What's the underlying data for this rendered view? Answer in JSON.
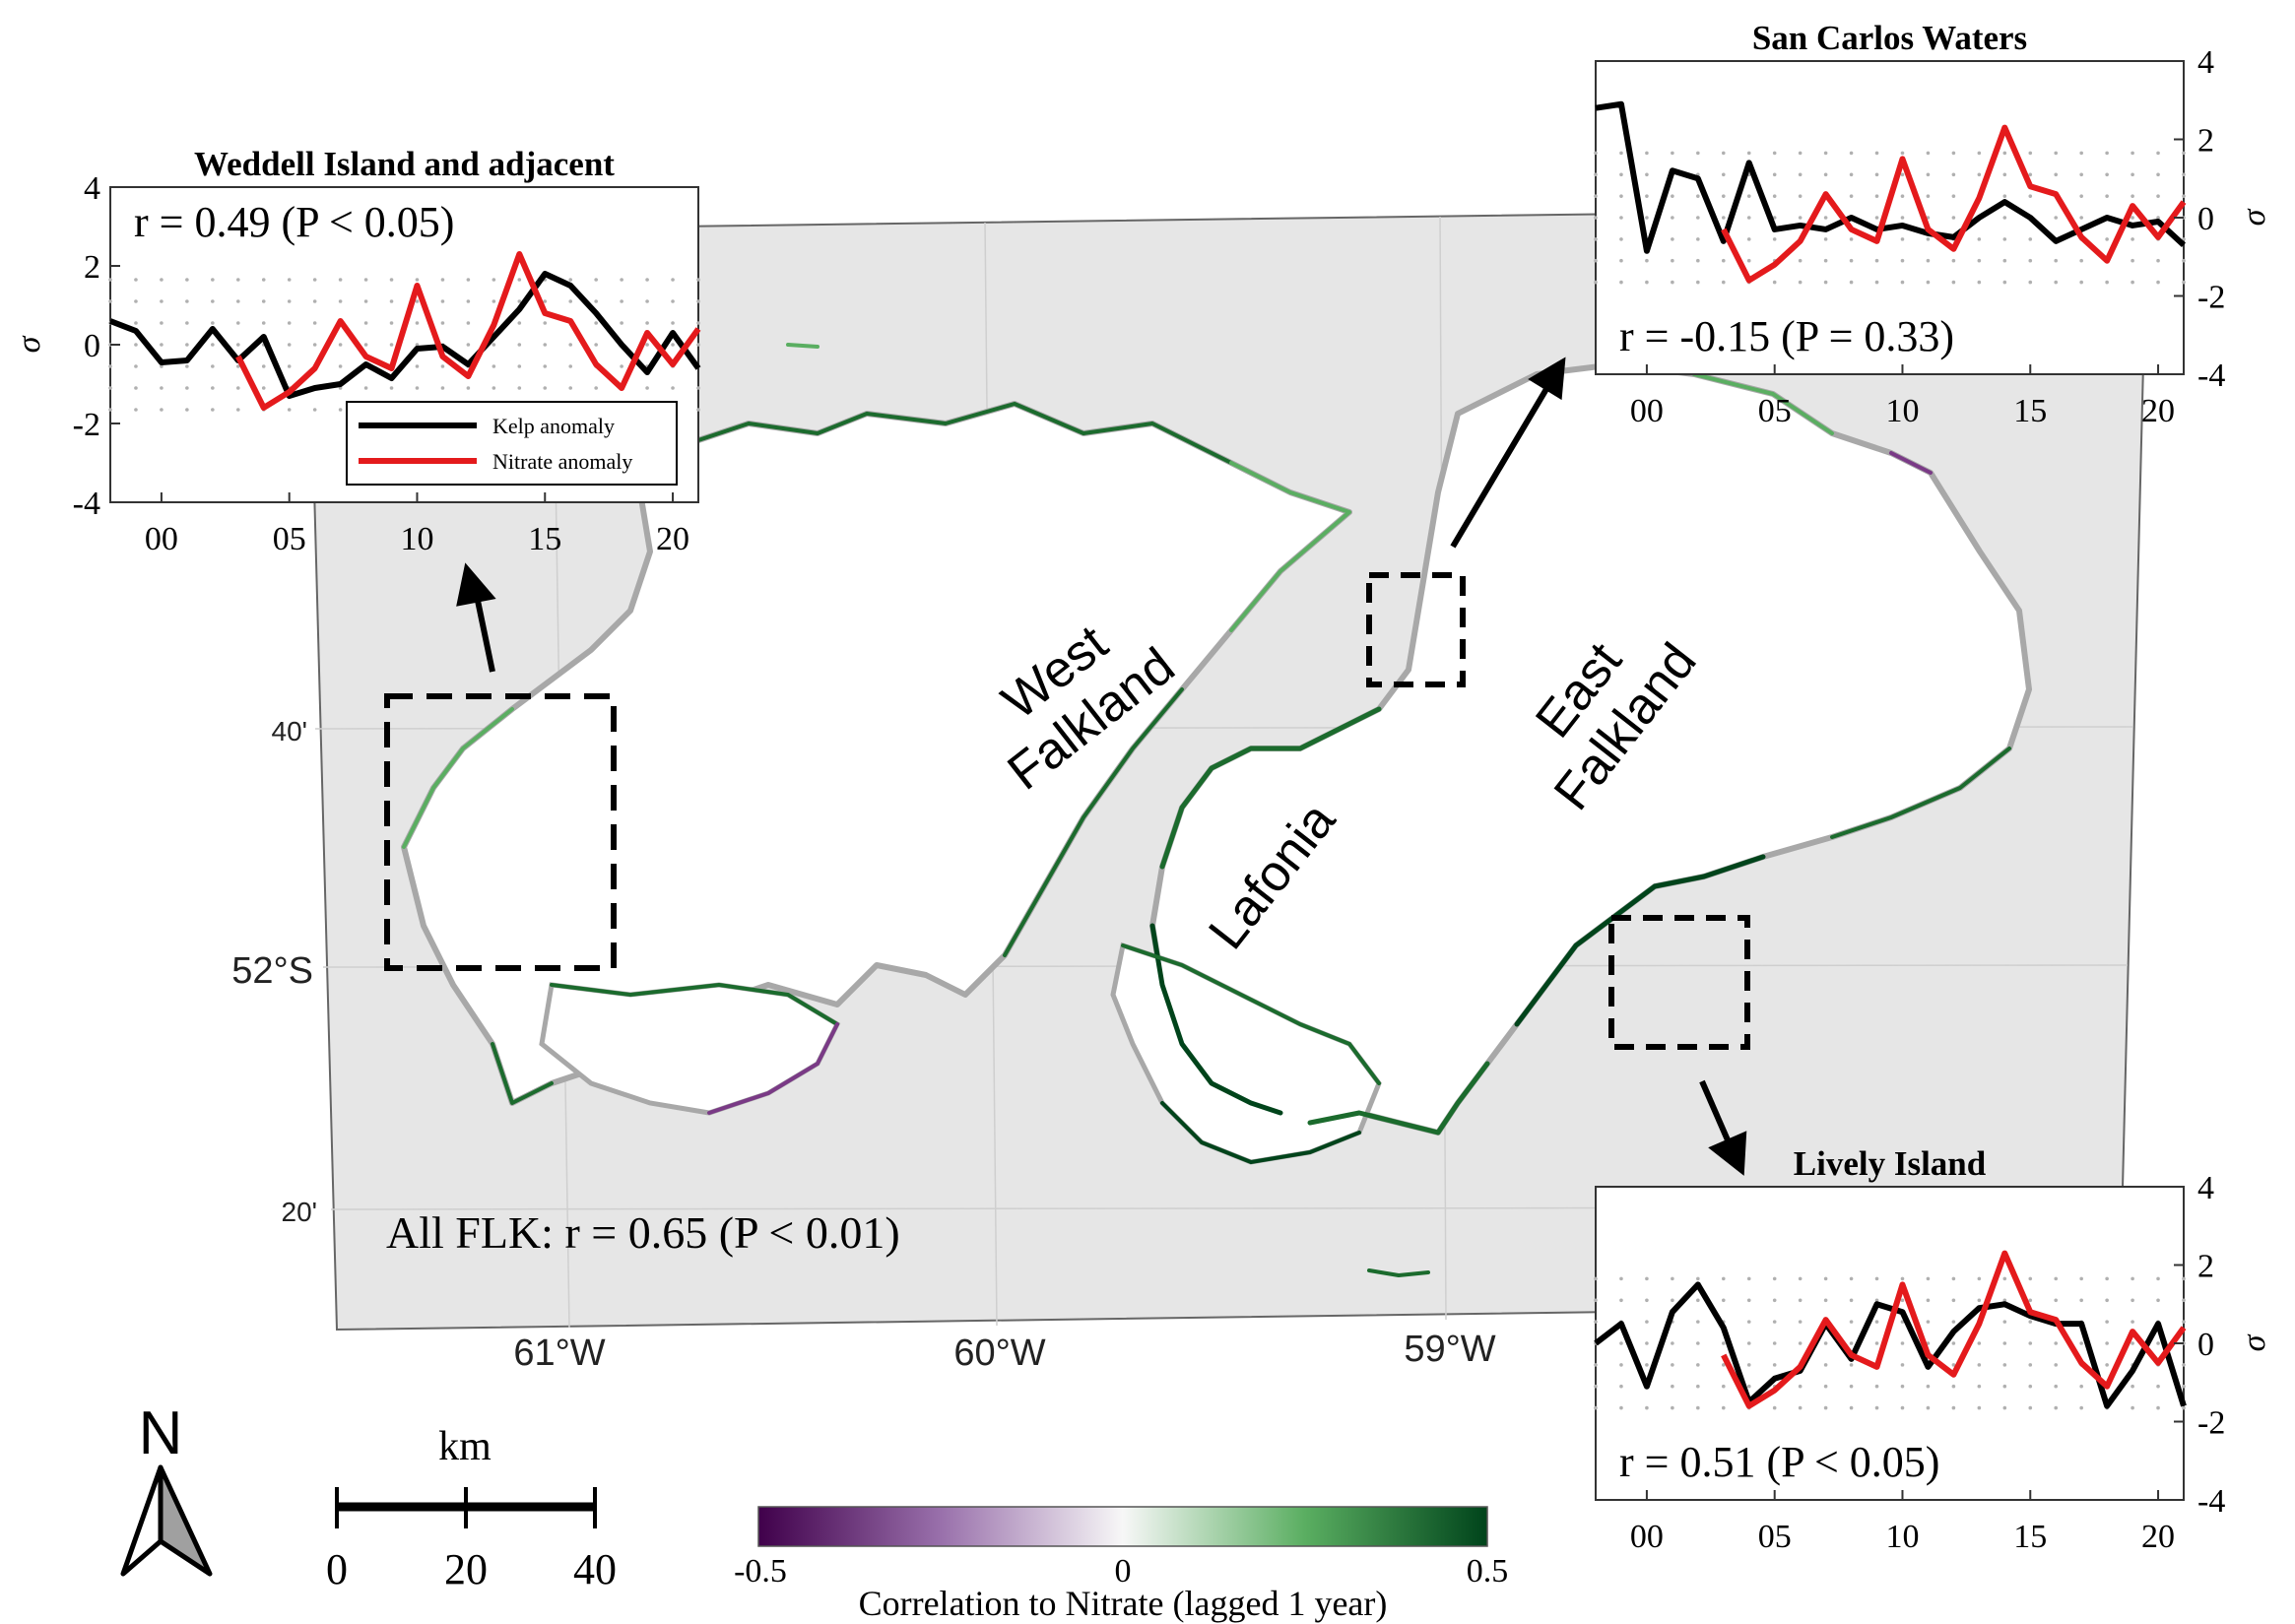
{
  "map": {
    "lat_labels": [
      "40'",
      "52°S",
      "20'"
    ],
    "lon_labels": [
      "61°W",
      "60°W",
      "59°W"
    ],
    "islands": [
      "West Falkland",
      "East Falkland",
      "Lafonia"
    ],
    "overall_stat": "All FLK: r = 0.65 (P < 0.01)",
    "colors": {
      "sea": "#e6e6e6",
      "land": "#ffffff",
      "shore_grey": "#a8a8a8",
      "positive": "#1b6b2d",
      "negative": "#7a3a86"
    }
  },
  "north_arrow": {
    "label": "N"
  },
  "scale_bar": {
    "unit": "km",
    "ticks": [
      "0",
      "20",
      "40"
    ]
  },
  "colorbar": {
    "label": "Correlation to Nitrate (lagged 1 year)",
    "ticks": [
      "-0.5",
      "0",
      "0.5"
    ],
    "range": [
      -0.5,
      0.5
    ],
    "colors": [
      "#40004b",
      "#9970ab",
      "#f7f7f7",
      "#5aae61",
      "#00441b"
    ]
  },
  "chart_data": [
    {
      "type": "line",
      "title": "Weddell Island and adjacent",
      "annotation": "r = 0.49 (P < 0.05)",
      "ylabel": "σ",
      "ylim": [
        -4,
        4
      ],
      "yticks": [
        "4",
        "2",
        "0",
        "-2",
        "-4"
      ],
      "xlim": [
        1998,
        2021
      ],
      "xticks": [
        "00",
        "05",
        "10",
        "15",
        "20"
      ],
      "legend_position": "bottom-right",
      "series": [
        {
          "name": "Kelp anomaly",
          "color": "#000000",
          "x": [
            1998,
            1999,
            2000,
            2001,
            2002,
            2003,
            2004,
            2005,
            2006,
            2007,
            2008,
            2009,
            2010,
            2011,
            2012,
            2013,
            2014,
            2015,
            2016,
            2017,
            2018,
            2019,
            2020,
            2021
          ],
          "y": [
            0.6,
            0.35,
            -0.45,
            -0.4,
            0.4,
            -0.4,
            0.2,
            -1.3,
            -1.1,
            -1.0,
            -0.5,
            -0.85,
            -0.1,
            -0.05,
            -0.5,
            0.2,
            0.9,
            1.8,
            1.5,
            0.8,
            0.0,
            -0.7,
            0.3,
            -0.6
          ]
        },
        {
          "name": "Nitrate anomaly",
          "color": "#e41a1c",
          "x": [
            2003,
            2004,
            2005,
            2006,
            2007,
            2008,
            2009,
            2010,
            2011,
            2012,
            2013,
            2014,
            2015,
            2016,
            2017,
            2018,
            2019,
            2020,
            2021
          ],
          "y": [
            -0.3,
            -1.6,
            -1.2,
            -0.6,
            0.6,
            -0.3,
            -0.6,
            1.5,
            -0.3,
            -0.8,
            0.5,
            2.3,
            0.8,
            0.6,
            -0.5,
            -1.1,
            0.3,
            -0.5,
            0.4
          ]
        }
      ]
    },
    {
      "type": "line",
      "title": "San Carlos Waters",
      "annotation": "r = -0.15 (P = 0.33)",
      "ylabel": "σ",
      "ylim": [
        -4,
        4
      ],
      "yticks": [
        "4",
        "2",
        "0",
        "-2",
        "-4"
      ],
      "xlim": [
        1998,
        2021
      ],
      "xticks": [
        "00",
        "05",
        "10",
        "15",
        "20"
      ],
      "series": [
        {
          "name": "Kelp anomaly",
          "color": "#000000",
          "x": [
            1998,
            1999,
            2000,
            2001,
            2002,
            2003,
            2004,
            2005,
            2006,
            2007,
            2008,
            2009,
            2010,
            2011,
            2012,
            2013,
            2014,
            2015,
            2016,
            2017,
            2018,
            2019,
            2020,
            2021
          ],
          "y": [
            2.8,
            2.9,
            -0.85,
            1.2,
            1.0,
            -0.6,
            1.4,
            -0.3,
            -0.2,
            -0.3,
            0.0,
            -0.3,
            -0.2,
            -0.4,
            -0.5,
            0.0,
            0.4,
            0.0,
            -0.6,
            -0.3,
            0.0,
            -0.2,
            -0.1,
            -0.7
          ]
        },
        {
          "name": "Nitrate anomaly",
          "color": "#e41a1c",
          "x": [
            2003,
            2004,
            2005,
            2006,
            2007,
            2008,
            2009,
            2010,
            2011,
            2012,
            2013,
            2014,
            2015,
            2016,
            2017,
            2018,
            2019,
            2020,
            2021
          ],
          "y": [
            -0.3,
            -1.6,
            -1.2,
            -0.6,
            0.6,
            -0.3,
            -0.6,
            1.5,
            -0.3,
            -0.8,
            0.5,
            2.3,
            0.8,
            0.6,
            -0.5,
            -1.1,
            0.3,
            -0.5,
            0.4
          ]
        }
      ]
    },
    {
      "type": "line",
      "title": "Lively Island",
      "annotation": "r = 0.51 (P < 0.05)",
      "ylabel": "σ",
      "ylim": [
        -4,
        4
      ],
      "yticks": [
        "4",
        "2",
        "0",
        "-2",
        "-4"
      ],
      "xlim": [
        1998,
        2021
      ],
      "xticks": [
        "00",
        "05",
        "10",
        "15",
        "20"
      ],
      "series": [
        {
          "name": "Kelp anomaly",
          "color": "#000000",
          "x": [
            1998,
            1999,
            2000,
            2001,
            2002,
            2003,
            2004,
            2005,
            2006,
            2007,
            2008,
            2009,
            2010,
            2011,
            2012,
            2013,
            2014,
            2015,
            2016,
            2017,
            2018,
            2019,
            2020,
            2021
          ],
          "y": [
            0.0,
            0.5,
            -1.1,
            0.8,
            1.5,
            0.4,
            -1.5,
            -0.9,
            -0.7,
            0.5,
            -0.4,
            1.0,
            0.8,
            -0.6,
            0.3,
            0.9,
            1.0,
            0.7,
            0.5,
            0.5,
            -1.6,
            -0.7,
            0.5,
            -1.6
          ]
        },
        {
          "name": "Nitrate anomaly",
          "color": "#e41a1c",
          "x": [
            2003,
            2004,
            2005,
            2006,
            2007,
            2008,
            2009,
            2010,
            2011,
            2012,
            2013,
            2014,
            2015,
            2016,
            2017,
            2018,
            2019,
            2020,
            2021
          ],
          "y": [
            -0.3,
            -1.6,
            -1.2,
            -0.6,
            0.6,
            -0.3,
            -0.6,
            1.5,
            -0.3,
            -0.8,
            0.5,
            2.3,
            0.8,
            0.6,
            -0.5,
            -1.1,
            0.3,
            -0.5,
            0.4
          ]
        }
      ]
    }
  ]
}
